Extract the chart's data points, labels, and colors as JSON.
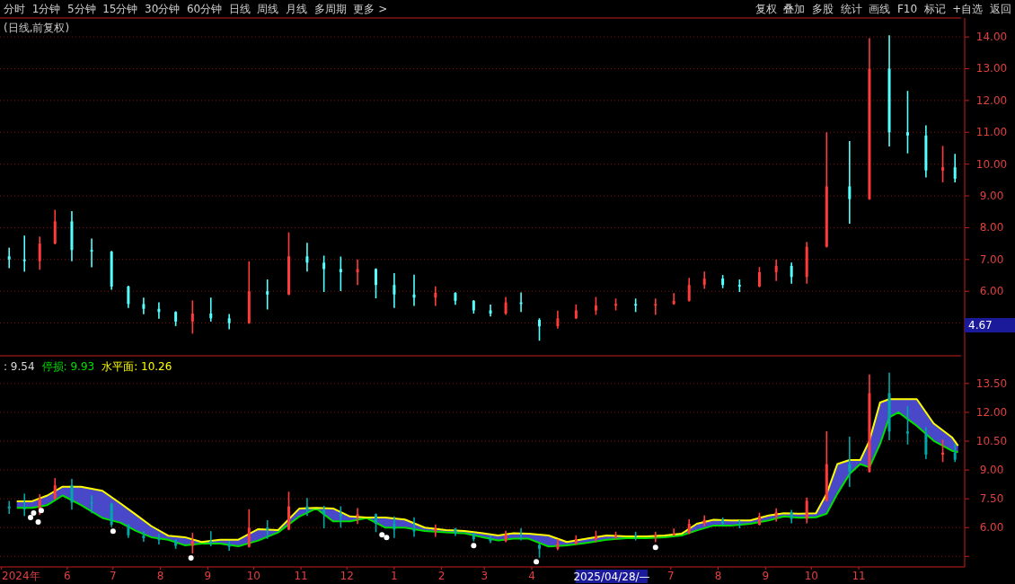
{
  "chart_data": [
    {
      "type": "candlestick",
      "title": "(日线,前复权)",
      "annotations": [
        "分时  1分钟  5分钟  15分钟  30分钟  60分钟  日线  周线  月线  多周期  更多 >",
        "复权  叠加  多股  统计  画线  F10  标记  +自选  返回",
        "4.67"
      ],
      "x": [
        "2024-04-24",
        "2024-05-04",
        "2024-05-14",
        "2024-05-24",
        "2024-06-04",
        "2024-06-17",
        "2024-06-30",
        "2024-07-11",
        "2024-07-21",
        "2024-07-31",
        "2024-08-11",
        "2024-08-22",
        "2024-09-03",
        "2024-09-15",
        "2024-09-28",
        "2024-10-10",
        "2024-10-24",
        "2024-11-05",
        "2024-11-16",
        "2024-11-27",
        "2024-12-08",
        "2024-12-20",
        "2025-01-01",
        "2025-01-14",
        "2025-01-28",
        "2025-02-10",
        "2025-02-22",
        "2025-03-05",
        "2025-03-15",
        "2025-03-25",
        "2025-04-06",
        "2025-04-18",
        "2025-04-30",
        "2025-05-13",
        "2025-05-26",
        "2025-06-08",
        "2025-06-21",
        "2025-07-03",
        "2025-07-13",
        "2025-07-23",
        "2025-08-04",
        "2025-08-15",
        "2025-08-28",
        "2025-09-08",
        "2025-09-18",
        "2025-09-28",
        "2025-10-11",
        "2025-10-26",
        "2025-11-08",
        "2025-11-21",
        "2025-12-03",
        "2025-12-15",
        "2025-12-26",
        "2026-01-03"
      ],
      "ohlc": [
        [
          7.1,
          7.35,
          6.75,
          7.0
        ],
        [
          7.0,
          7.73,
          6.64,
          6.95
        ],
        [
          6.95,
          7.7,
          6.7,
          7.5
        ],
        [
          7.5,
          8.54,
          7.5,
          8.2
        ],
        [
          8.2,
          8.5,
          6.97,
          7.3
        ],
        [
          7.3,
          7.64,
          6.78,
          7.25
        ],
        [
          7.25,
          7.25,
          6.07,
          6.15
        ],
        [
          6.15,
          6.15,
          5.5,
          5.6
        ],
        [
          5.6,
          5.78,
          5.3,
          5.45
        ],
        [
          5.45,
          5.63,
          5.16,
          5.35
        ],
        [
          5.35,
          5.35,
          4.93,
          5.05
        ],
        [
          5.05,
          5.69,
          4.69,
          5.3
        ],
        [
          5.3,
          5.78,
          5.07,
          5.15
        ],
        [
          5.15,
          5.26,
          4.83,
          5.0
        ],
        [
          5.0,
          6.92,
          5.0,
          6.0
        ],
        [
          6.0,
          6.35,
          5.45,
          5.9
        ],
        [
          5.9,
          7.83,
          5.9,
          7.1
        ],
        [
          7.1,
          7.5,
          6.64,
          6.9
        ],
        [
          6.9,
          7.1,
          6.0,
          6.7
        ],
        [
          6.7,
          7.07,
          6.03,
          6.6
        ],
        [
          6.6,
          6.98,
          6.22,
          6.7
        ],
        [
          6.7,
          6.7,
          5.8,
          6.2
        ],
        [
          6.2,
          6.55,
          5.5,
          5.9
        ],
        [
          5.9,
          6.5,
          5.56,
          5.8
        ],
        [
          5.8,
          6.13,
          5.56,
          5.95
        ],
        [
          5.95,
          5.95,
          5.6,
          5.7
        ],
        [
          5.7,
          5.7,
          5.32,
          5.4
        ],
        [
          5.4,
          5.56,
          5.23,
          5.3
        ],
        [
          5.3,
          5.8,
          5.28,
          5.65
        ],
        [
          5.65,
          5.94,
          5.37,
          5.6
        ],
        [
          5.1,
          5.13,
          4.47,
          4.9
        ],
        [
          4.9,
          5.37,
          4.85,
          5.15
        ],
        [
          5.15,
          5.56,
          5.15,
          5.4
        ],
        [
          5.4,
          5.8,
          5.28,
          5.55
        ],
        [
          5.55,
          5.75,
          5.42,
          5.6
        ],
        [
          5.6,
          5.75,
          5.37,
          5.55
        ],
        [
          5.55,
          5.75,
          5.28,
          5.6
        ],
        [
          5.6,
          5.92,
          5.6,
          5.7
        ],
        [
          5.7,
          6.4,
          5.7,
          6.2
        ],
        [
          6.2,
          6.6,
          6.1,
          6.4
        ],
        [
          6.4,
          6.49,
          6.12,
          6.2
        ],
        [
          6.2,
          6.35,
          6.0,
          6.15
        ],
        [
          6.15,
          6.74,
          6.15,
          6.6
        ],
        [
          6.6,
          6.97,
          6.35,
          6.8
        ],
        [
          6.8,
          6.88,
          6.26,
          6.45
        ],
        [
          6.45,
          7.53,
          6.26,
          7.4
        ],
        [
          7.4,
          10.98,
          7.4,
          9.3
        ],
        [
          9.3,
          10.7,
          8.15,
          8.9
        ],
        [
          8.9,
          13.94,
          8.9,
          13.0
        ],
        [
          13.0,
          14.03,
          10.58,
          11.0
        ],
        [
          11.0,
          12.28,
          10.36,
          10.9
        ],
        [
          10.9,
          11.2,
          9.6,
          9.8
        ],
        [
          9.8,
          10.55,
          9.45,
          9.9
        ],
        [
          9.9,
          10.3,
          9.45,
          9.54
        ]
      ],
      "colors": [
        "#54ffff",
        "#54ffff",
        "#ff3b3b",
        "#ff3b3b",
        "#54ffff",
        "#54ffff",
        "#54ffff",
        "#54ffff",
        "#54ffff",
        "#54ffff",
        "#54ffff",
        "#ff3b3b",
        "#54ffff",
        "#54ffff",
        "#ff3b3b",
        "#54ffff",
        "#ff3b3b",
        "#54ffff",
        "#54ffff",
        "#54ffff",
        "#ff3b3b",
        "#54ffff",
        "#54ffff",
        "#54ffff",
        "#ff3b3b",
        "#54ffff",
        "#54ffff",
        "#54ffff",
        "#ff3b3b",
        "#54ffff",
        "#54ffff",
        "#ff3b3b",
        "#ff3b3b",
        "#ff3b3b",
        "#ff3b3b",
        "#54ffff",
        "#ff3b3b",
        "#ff3b3b",
        "#ff3b3b",
        "#ff3b3b",
        "#54ffff",
        "#54ffff",
        "#ff3b3b",
        "#ff3b3b",
        "#54ffff",
        "#ff3b3b",
        "#ff3b3b",
        "#54ffff",
        "#ff3b3b",
        "#54ffff",
        "#54ffff",
        "#54ffff",
        "#ff3b3b",
        "#54ffff"
      ],
      "xlim": [
        "2024-04-18",
        "2026-01-07"
      ],
      "ylim": [
        4.0,
        14.54
      ],
      "yticks": [
        {
          "value": 5,
          "label": null
        },
        {
          "value": 6,
          "label": "6.00"
        },
        {
          "value": 7,
          "label": "7.00"
        },
        {
          "value": 8,
          "label": "8.00"
        },
        {
          "value": 9,
          "label": "9.00"
        },
        {
          "value": 10,
          "label": "10.00"
        },
        {
          "value": 11,
          "label": "11.00"
        },
        {
          "value": 12,
          "label": "12.00"
        },
        {
          "value": 13,
          "label": "13.00"
        },
        {
          "value": 14,
          "label": "14.00"
        }
      ],
      "grid": "y",
      "tick_labels": "y"
    },
    {
      "type": "line",
      "annotations": [
        ": 9.54",
        "2025/04/28/—"
      ],
      "x": [
        "2024-04-24",
        "2024-05-04",
        "2024-05-14",
        "2024-05-24",
        "2024-06-04",
        "2024-06-17",
        "2024-06-30",
        "2024-07-11",
        "2024-07-21",
        "2024-07-31",
        "2024-08-11",
        "2024-08-22",
        "2024-09-03",
        "2024-09-15",
        "2024-09-28",
        "2024-10-10",
        "2024-10-24",
        "2024-11-05",
        "2024-11-16",
        "2024-11-27",
        "2024-12-08",
        "2024-12-20",
        "2025-01-01",
        "2025-01-14",
        "2025-01-28",
        "2025-02-10",
        "2025-02-22",
        "2025-03-05",
        "2025-03-15",
        "2025-03-25",
        "2025-04-06",
        "2025-04-18",
        "2025-04-30",
        "2025-05-13",
        "2025-05-26",
        "2025-06-08",
        "2025-06-21",
        "2025-07-03",
        "2025-07-13",
        "2025-07-23",
        "2025-08-04",
        "2025-08-15",
        "2025-08-28",
        "2025-09-08",
        "2025-09-18",
        "2025-09-28",
        "2025-10-11",
        "2025-10-26",
        "2025-11-08",
        "2025-11-21",
        "2025-12-03",
        "2025-12-15",
        "2025-12-26",
        "2026-01-03"
      ],
      "xlim": [
        "2024-04-18",
        "2026-01-07"
      ],
      "xticks": [
        {
          "value": "2024-04-19",
          "label": "2024年"
        },
        {
          "value": "2024-06-01",
          "label": "6"
        },
        {
          "value": "2024-07-01",
          "label": "7"
        },
        {
          "value": "2024-08-01",
          "label": "8"
        },
        {
          "value": "2024-09-01",
          "label": "9"
        },
        {
          "value": "2024-10-01",
          "label": "10"
        },
        {
          "value": "2024-11-01",
          "label": "11"
        },
        {
          "value": "2024-12-01",
          "label": "12"
        },
        {
          "value": "2025-01-01",
          "label": "1"
        },
        {
          "value": "2025-02-01",
          "label": "2"
        },
        {
          "value": "2025-03-01",
          "label": "3"
        },
        {
          "value": "2025-04-01",
          "label": "4"
        },
        {
          "value": "2025-07-01",
          "label": "7"
        },
        {
          "value": "2025-08-01",
          "label": "8"
        },
        {
          "value": "2025-09-01",
          "label": "9"
        },
        {
          "value": "2025-10-01",
          "label": "10"
        },
        {
          "value": "2025-11-01",
          "label": "11"
        }
      ],
      "ylim": [
        4.0,
        14.85
      ],
      "yticks": [
        {
          "value": 4.5,
          "label": null
        },
        {
          "value": 6,
          "label": "6.00"
        },
        {
          "value": 7.5,
          "label": "7.50"
        },
        {
          "value": 9,
          "label": "9.00"
        },
        {
          "value": 10.5,
          "label": "10.50"
        },
        {
          "value": 12,
          "label": "12.00"
        },
        {
          "value": 13.5,
          "label": "13.50"
        }
      ],
      "grid": "y",
      "series": [
        {
          "type": "candlestick",
          "ohlc": [
            [
              7.1,
              7.35,
              6.75,
              7.0
            ],
            [
              7.0,
              7.73,
              6.64,
              6.95
            ],
            [
              6.95,
              7.7,
              6.7,
              7.5
            ],
            [
              7.5,
              8.54,
              7.5,
              8.2
            ],
            [
              8.2,
              8.5,
              6.97,
              7.3
            ],
            [
              7.3,
              7.64,
              6.78,
              7.25
            ],
            [
              7.25,
              7.25,
              6.07,
              6.15
            ],
            [
              6.15,
              6.15,
              5.5,
              5.6
            ],
            [
              5.6,
              5.78,
              5.3,
              5.45
            ],
            [
              5.45,
              5.63,
              5.16,
              5.35
            ],
            [
              5.35,
              5.35,
              4.93,
              5.05
            ],
            [
              5.05,
              5.69,
              4.69,
              5.3
            ],
            [
              5.3,
              5.78,
              5.07,
              5.15
            ],
            [
              5.15,
              5.26,
              4.83,
              5.0
            ],
            [
              5.0,
              6.92,
              5.0,
              6.0
            ],
            [
              6.0,
              6.35,
              5.45,
              5.9
            ],
            [
              5.9,
              7.83,
              5.9,
              7.1
            ],
            [
              7.1,
              7.5,
              6.64,
              6.9
            ],
            [
              6.9,
              7.1,
              6.0,
              6.7
            ],
            [
              6.7,
              7.07,
              6.03,
              6.6
            ],
            [
              6.6,
              6.98,
              6.22,
              6.7
            ],
            [
              6.7,
              6.7,
              5.8,
              6.2
            ],
            [
              6.2,
              6.55,
              5.5,
              5.9
            ],
            [
              5.9,
              6.5,
              5.56,
              5.8
            ],
            [
              5.8,
              6.13,
              5.56,
              5.95
            ],
            [
              5.95,
              5.95,
              5.6,
              5.7
            ],
            [
              5.7,
              5.7,
              5.32,
              5.4
            ],
            [
              5.4,
              5.56,
              5.23,
              5.3
            ],
            [
              5.3,
              5.8,
              5.28,
              5.65
            ],
            [
              5.65,
              5.94,
              5.37,
              5.6
            ],
            [
              5.1,
              5.13,
              4.47,
              4.9
            ],
            [
              4.9,
              5.37,
              4.85,
              5.15
            ],
            [
              5.15,
              5.56,
              5.15,
              5.4
            ],
            [
              5.4,
              5.8,
              5.28,
              5.55
            ],
            [
              5.55,
              5.75,
              5.42,
              5.6
            ],
            [
              5.6,
              5.75,
              5.37,
              5.55
            ],
            [
              5.55,
              5.75,
              5.28,
              5.6
            ],
            [
              5.6,
              5.92,
              5.6,
              5.7
            ],
            [
              5.7,
              6.4,
              5.7,
              6.2
            ],
            [
              6.2,
              6.6,
              6.1,
              6.4
            ],
            [
              6.4,
              6.49,
              6.12,
              6.2
            ],
            [
              6.2,
              6.35,
              6.0,
              6.15
            ],
            [
              6.15,
              6.74,
              6.15,
              6.6
            ],
            [
              6.6,
              6.97,
              6.35,
              6.8
            ],
            [
              6.8,
              6.88,
              6.26,
              6.45
            ],
            [
              6.45,
              7.53,
              6.26,
              7.4
            ],
            [
              7.4,
              10.98,
              7.4,
              9.3
            ],
            [
              9.3,
              10.7,
              8.15,
              8.9
            ],
            [
              8.9,
              13.94,
              8.9,
              13.0
            ],
            [
              13.0,
              14.03,
              10.58,
              11.0
            ],
            [
              11.0,
              12.28,
              10.36,
              10.9
            ],
            [
              10.9,
              11.2,
              9.6,
              9.8
            ],
            [
              9.8,
              10.55,
              9.45,
              9.9
            ],
            [
              9.9,
              10.3,
              9.45,
              9.54
            ]
          ],
          "colors": [
            "#00a8a8",
            "#00a8a8",
            "#ff3b3b",
            "#ff3b3b",
            "#00a8a8",
            "#00a8a8",
            "#00a8a8",
            "#00a8a8",
            "#00a8a8",
            "#00a8a8",
            "#00a8a8",
            "#ff3b3b",
            "#00a8a8",
            "#00a8a8",
            "#ff3b3b",
            "#00a8a8",
            "#ff3b3b",
            "#00a8a8",
            "#00a8a8",
            "#00a8a8",
            "#ff3b3b",
            "#00a8a8",
            "#00a8a8",
            "#00a8a8",
            "#ff3b3b",
            "#00a8a8",
            "#00a8a8",
            "#00a8a8",
            "#ff3b3b",
            "#00a8a8",
            "#00a8a8",
            "#ff3b3b",
            "#ff3b3b",
            "#ff3b3b",
            "#ff3b3b",
            "#00a8a8",
            "#ff3b3b",
            "#ff3b3b",
            "#ff3b3b",
            "#ff3b3b",
            "#00a8a8",
            "#00a8a8",
            "#ff3b3b",
            "#ff3b3b",
            "#00a8a8",
            "#ff3b3b",
            "#ff3b3b",
            "#00a8a8",
            "#ff3b3b",
            "#00a8a8",
            "#00a8a8",
            "#00a8a8",
            "#ff3b3b",
            "#00a8a8"
          ]
        },
        {
          "type": "area",
          "color": "#4848c8",
          "x": [
            "2024-04-29",
            "2024-05-09",
            "2024-05-19",
            "2024-05-29",
            "2024-06-10",
            "2024-06-24",
            "2024-07-06",
            "2024-07-16",
            "2024-07-26",
            "2024-08-06",
            "2024-08-17",
            "2024-08-28",
            "2024-09-09",
            "2024-09-21",
            "2024-10-04",
            "2024-10-17",
            "2024-10-31",
            "2024-11-11",
            "2024-11-22",
            "2024-12-03",
            "2024-12-14",
            "2024-12-26",
            "2025-01-08",
            "2025-01-21",
            "2025-02-04",
            "2025-02-16",
            "2025-02-28",
            "2025-03-10",
            "2025-03-20",
            "2025-03-30",
            "2025-04-12",
            "2025-04-24",
            "2025-05-07",
            "2025-05-20",
            "2025-06-02",
            "2025-06-15",
            "2025-06-27",
            "2025-07-08",
            "2025-07-18",
            "2025-07-29",
            "2025-08-09",
            "2025-08-22",
            "2025-09-03",
            "2025-09-13",
            "2025-09-23",
            "2025-10-04",
            "2025-10-11",
            "2025-10-18",
            "2025-10-26",
            "2025-11-02",
            "2025-11-08",
            "2025-11-15",
            "2025-11-21",
            "2025-11-27",
            "2025-12-09",
            "2025-12-20",
            "2026-01-01",
            "2026-01-05"
          ],
          "values": [
            7.37,
            7.37,
            7.67,
            8.13,
            8.13,
            7.92,
            7.25,
            6.67,
            6.08,
            5.58,
            5.5,
            5.25,
            5.37,
            5.37,
            5.92,
            5.87,
            7.0,
            7.03,
            7.0,
            6.58,
            6.53,
            6.53,
            6.42,
            6.0,
            5.87,
            5.83,
            5.7,
            5.59,
            5.71,
            5.68,
            5.59,
            5.25,
            5.42,
            5.59,
            5.54,
            5.54,
            5.59,
            5.68,
            6.2,
            6.41,
            6.37,
            6.37,
            6.63,
            6.75,
            6.72,
            6.75,
            7.76,
            9.31,
            9.52,
            9.52,
            10.52,
            12.51,
            12.69,
            12.69,
            12.69,
            11.42,
            10.7,
            10.26
          ]
        },
        {
          "name": "停损: 9.93",
          "color": "#00e000",
          "x": [
            "2024-04-29",
            "2024-05-09",
            "2024-05-19",
            "2024-05-29",
            "2024-06-10",
            "2024-06-24",
            "2024-07-06",
            "2024-07-16",
            "2024-07-26",
            "2024-08-06",
            "2024-08-17",
            "2024-08-28",
            "2024-09-09",
            "2024-09-21",
            "2024-10-04",
            "2024-10-17",
            "2024-10-31",
            "2024-11-11",
            "2024-11-22",
            "2024-12-03",
            "2024-12-14",
            "2024-12-26",
            "2025-01-08",
            "2025-01-21",
            "2025-02-04",
            "2025-02-16",
            "2025-02-28",
            "2025-03-10",
            "2025-03-20",
            "2025-03-30",
            "2025-04-12",
            "2025-04-24",
            "2025-05-07",
            "2025-05-20",
            "2025-06-02",
            "2025-06-15",
            "2025-06-27",
            "2025-07-08",
            "2025-07-18",
            "2025-07-29",
            "2025-08-09",
            "2025-08-22",
            "2025-09-03",
            "2025-09-13",
            "2025-09-23",
            "2025-10-04",
            "2025-10-11",
            "2025-10-18",
            "2025-10-26",
            "2025-11-02",
            "2025-11-08",
            "2025-11-15",
            "2025-11-21",
            "2025-11-27",
            "2025-12-09",
            "2025-12-20",
            "2026-01-01",
            "2026-01-05"
          ],
          "values": [
            7.03,
            7.03,
            7.17,
            7.67,
            7.17,
            6.5,
            6.25,
            5.83,
            5.5,
            5.37,
            5.08,
            5.17,
            5.17,
            5.03,
            5.33,
            5.75,
            6.58,
            7.0,
            6.33,
            6.33,
            6.5,
            6.0,
            6.0,
            5.83,
            5.75,
            5.7,
            5.5,
            5.33,
            5.42,
            5.42,
            5.02,
            5.07,
            5.2,
            5.37,
            5.45,
            5.45,
            5.5,
            5.59,
            5.85,
            6.11,
            6.11,
            6.2,
            6.37,
            6.58,
            6.51,
            6.54,
            6.72,
            7.76,
            8.79,
            9.31,
            9.14,
            10.35,
            11.74,
            12.0,
            11.3,
            10.52,
            10.0,
            9.93
          ]
        },
        {
          "name": "水平面: 10.26",
          "color": "#ffff00",
          "x": [
            "2024-04-29",
            "2024-05-09",
            "2024-05-19",
            "2024-05-29",
            "2024-06-10",
            "2024-06-24",
            "2024-07-06",
            "2024-07-16",
            "2024-07-26",
            "2024-08-06",
            "2024-08-17",
            "2024-08-28",
            "2024-09-09",
            "2024-09-21",
            "2024-10-04",
            "2024-10-17",
            "2024-10-31",
            "2024-11-11",
            "2024-11-22",
            "2024-12-03",
            "2024-12-14",
            "2024-12-26",
            "2025-01-08",
            "2025-01-21",
            "2025-02-04",
            "2025-02-16",
            "2025-02-28",
            "2025-03-10",
            "2025-03-20",
            "2025-03-30",
            "2025-04-12",
            "2025-04-24",
            "2025-05-07",
            "2025-05-20",
            "2025-06-02",
            "2025-06-15",
            "2025-06-27",
            "2025-07-08",
            "2025-07-18",
            "2025-07-29",
            "2025-08-09",
            "2025-08-22",
            "2025-09-03",
            "2025-09-13",
            "2025-09-23",
            "2025-10-04",
            "2025-10-11",
            "2025-10-18",
            "2025-10-26",
            "2025-11-02",
            "2025-11-08",
            "2025-11-15",
            "2025-11-21",
            "2025-11-27",
            "2025-12-09",
            "2025-12-20",
            "2026-01-01",
            "2026-01-05"
          ],
          "values": [
            7.37,
            7.37,
            7.67,
            8.13,
            8.13,
            7.92,
            7.25,
            6.67,
            6.08,
            5.58,
            5.5,
            5.25,
            5.37,
            5.37,
            5.92,
            5.87,
            7.0,
            7.03,
            7.0,
            6.58,
            6.53,
            6.53,
            6.42,
            6.0,
            5.87,
            5.83,
            5.7,
            5.59,
            5.71,
            5.68,
            5.59,
            5.25,
            5.42,
            5.59,
            5.54,
            5.54,
            5.59,
            5.68,
            6.2,
            6.41,
            6.37,
            6.37,
            6.63,
            6.75,
            6.72,
            6.75,
            7.76,
            9.31,
            9.52,
            9.52,
            10.52,
            12.51,
            12.69,
            12.69,
            12.69,
            11.42,
            10.7,
            10.26
          ]
        },
        {
          "type": "scatter",
          "color": "#ffffff",
          "marker": "circle",
          "x": [
            "2024-05-08",
            "2024-05-10",
            "2024-05-13",
            "2024-05-15",
            "2024-07-01",
            "2024-08-21",
            "2024-12-24",
            "2024-12-27",
            "2025-02-22",
            "2025-04-04",
            "2025-06-21"
          ],
          "values": [
            6.52,
            6.76,
            6.29,
            6.89,
            5.81,
            4.42,
            5.62,
            5.48,
            5.06,
            4.22,
            4.97
          ]
        }
      ]
    }
  ]
}
